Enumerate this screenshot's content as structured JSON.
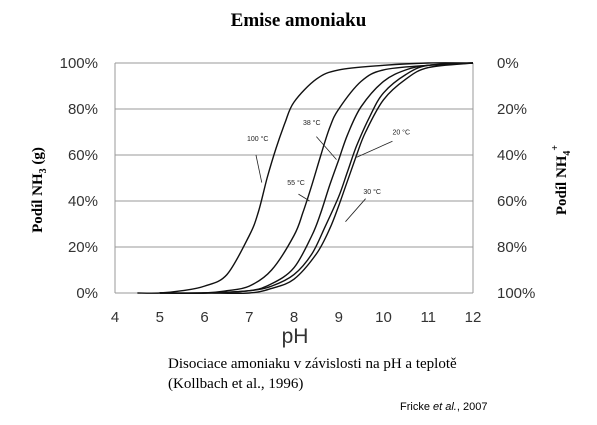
{
  "title": "Emise amoniaku",
  "caption": {
    "line1": "Disociace amoniaku v závislosti na pH a teplotě",
    "line2": "(Kollbach et al., 1996)"
  },
  "source": {
    "author": "Fricke",
    "etal": "et al.",
    "year": ", 2007"
  },
  "chart_data": {
    "type": "line",
    "xlabel": "pH",
    "ylabel_left": "Podíl NH3 (g)",
    "ylabel_right": "Podíl NH4+",
    "xlim": [
      4,
      12
    ],
    "ylim": [
      0,
      100
    ],
    "x_ticks": [
      "4",
      "5",
      "6",
      "7",
      "8",
      "9",
      "10",
      "11",
      "12"
    ],
    "y_ticks_left": [
      "0%",
      "20%",
      "40%",
      "60%",
      "80%",
      "100%"
    ],
    "y_ticks_right": [
      "100%",
      "80%",
      "60%",
      "40%",
      "20%",
      "0%"
    ],
    "grid": "horizontal",
    "series": [
      {
        "name": "100 °C",
        "x": [
          4.5,
          5,
          5.5,
          6,
          6.5,
          7,
          7.2,
          7.4,
          7.6,
          7.8,
          8,
          8.5,
          9,
          10,
          11,
          12
        ],
        "y": [
          0,
          0,
          1,
          3,
          8,
          25,
          35,
          50,
          63,
          74,
          83,
          93,
          97,
          99,
          100,
          100
        ]
      },
      {
        "name": "55 °C",
        "x": [
          5,
          6,
          6.5,
          7,
          7.5,
          8,
          8.2,
          8.4,
          8.6,
          8.8,
          9,
          9.5,
          10,
          11,
          12
        ],
        "y": [
          0,
          0,
          1,
          3,
          10,
          25,
          35,
          47,
          60,
          72,
          80,
          92,
          97,
          99,
          100
        ]
      },
      {
        "name": "38 °C",
        "x": [
          5,
          6,
          7,
          7.5,
          8,
          8.4,
          8.6,
          8.8,
          9,
          9.2,
          9.5,
          10,
          10.5,
          11,
          12
        ],
        "y": [
          0,
          0,
          1,
          4,
          11,
          25,
          35,
          47,
          58,
          69,
          81,
          92,
          97,
          99,
          100
        ]
      },
      {
        "name": "20 °C",
        "x": [
          5,
          6,
          7,
          7.5,
          8,
          8.5,
          8.8,
          9,
          9.2,
          9.4,
          9.6,
          10,
          10.5,
          11,
          12
        ],
        "y": [
          0,
          0,
          0,
          2,
          6,
          17,
          28,
          38,
          49,
          60,
          70,
          84,
          93,
          98,
          100
        ]
      },
      {
        "name": "30 °C",
        "x": [
          5,
          6,
          7,
          7.5,
          8,
          8.4,
          8.7,
          9,
          9.2,
          9.4,
          9.7,
          10,
          10.5,
          11,
          12
        ],
        "y": [
          0,
          0,
          1,
          3,
          8,
          17,
          29,
          42,
          53,
          64,
          77,
          87,
          95,
          99,
          100
        ]
      }
    ]
  }
}
